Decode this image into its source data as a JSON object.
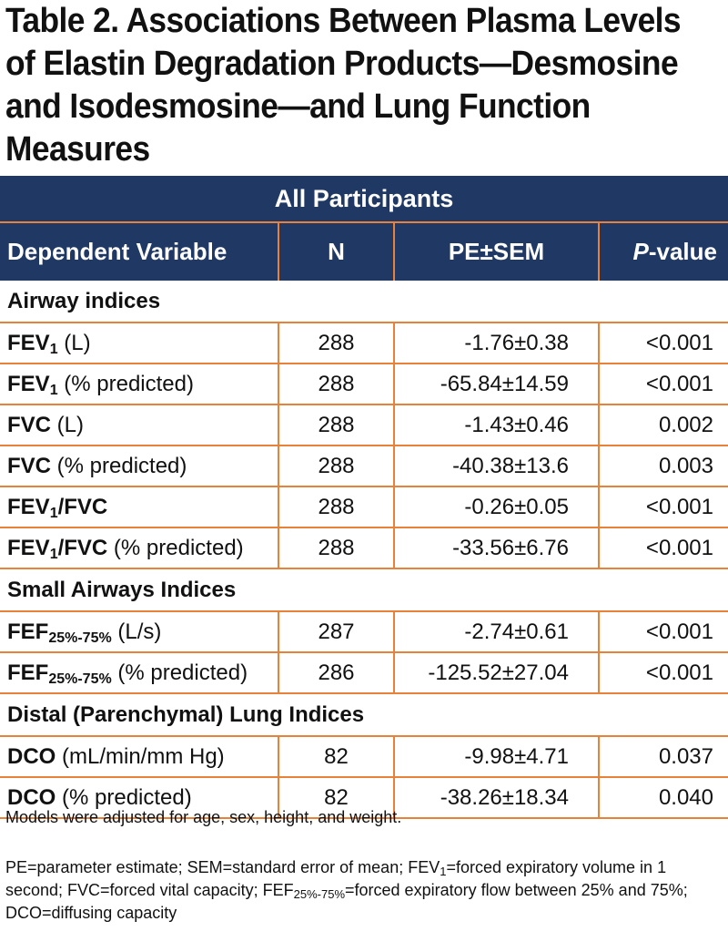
{
  "title": {
    "line1": "Table 2. Associations Between Plasma Levels",
    "line2": "of Elastin Degradation Products—Desmosine",
    "line3": "and Isodesmosine—and Lung Function",
    "line4": "Measures"
  },
  "table": {
    "band": "All Participants",
    "headers": {
      "variable": "Dependent Variable",
      "n": "N",
      "pe": "PE±SEM",
      "p_italic": "P",
      "p_rest": "-value"
    },
    "sections": [
      {
        "label": "Airway indices",
        "rows": [
          {
            "name": "FEV",
            "sub": "1",
            "unit": " (L)",
            "n": "288",
            "pe": "-1.76±0.38",
            "p": "<0.001"
          },
          {
            "name": "FEV",
            "sub": "1",
            "unit": " (% predicted)",
            "n": "288",
            "pe": "-65.84±14.59",
            "p": "<0.001"
          },
          {
            "name": "FVC",
            "sub": "",
            "unit": " (L)",
            "n": "288",
            "pe": "-1.43±0.46",
            "p": "0.002"
          },
          {
            "name": "FVC",
            "sub": "",
            "unit": " (% predicted)",
            "n": "288",
            "pe": "-40.38±13.6",
            "p": "0.003"
          },
          {
            "name": "FEV",
            "sub": "1",
            "name2": "/FVC",
            "unit": "",
            "n": "288",
            "pe": "-0.26±0.05",
            "p": "<0.001"
          },
          {
            "name": "FEV",
            "sub": "1",
            "name2": "/FVC",
            "unit": " (% predicted)",
            "n": "288",
            "pe": "-33.56±6.76",
            "p": "<0.001"
          }
        ]
      },
      {
        "label": "Small Airways Indices",
        "rows": [
          {
            "name": "FEF",
            "sub": "25%-75%",
            "unit": " (L/s)",
            "n": "287",
            "pe": "-2.74±0.61",
            "p": "<0.001"
          },
          {
            "name": "FEF",
            "sub": "25%-75%",
            "unit": " (% predicted)",
            "n": "286",
            "pe": "-125.52±27.04",
            "p": "<0.001"
          }
        ]
      },
      {
        "label": "Distal (Parenchymal) Lung Indices",
        "rows": [
          {
            "name": "DCO",
            "sub": "",
            "unit": " (mL/min/mm Hg)",
            "n": "82",
            "pe": "-9.98±4.71",
            "p": "0.037"
          },
          {
            "name": "DCO",
            "sub": "",
            "unit": " (% predicted)",
            "n": "82",
            "pe": "-38.26±18.34",
            "p": "0.040"
          }
        ]
      }
    ]
  },
  "footnotes": {
    "adjusted": "Models were adjusted for age, sex, height, and weight.",
    "abbrev_part1": "PE=parameter estimate; SEM=standard error of mean; FEV",
    "abbrev_sub1": "1",
    "abbrev_part2": "=forced expiratory volume in 1 second; FVC=forced vital capacity; FEF",
    "abbrev_sub2": "25%-75%",
    "abbrev_part3": "=forced expiratory flow between 25% and 75%; DCO=diffusing capacity"
  },
  "colors": {
    "header_bg": "#1f3864",
    "rule": "#e8823a"
  }
}
